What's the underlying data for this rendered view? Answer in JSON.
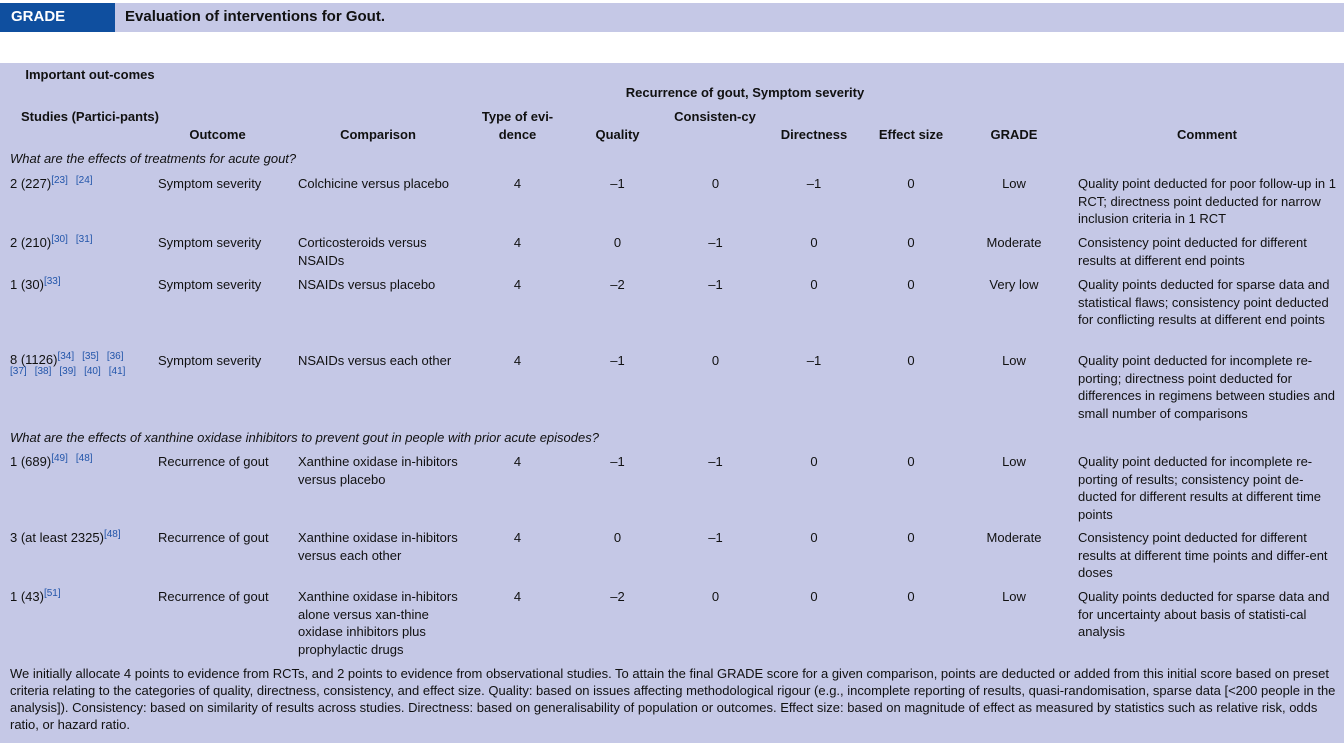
{
  "title": {
    "tag": "GRADE",
    "text": "Evaluation of interventions for Gout."
  },
  "header": {
    "important": "Important out-comes",
    "group": "Recurrence of gout, Symptom severity",
    "studies": "Studies (Partici-pants)",
    "outcome": "Outcome",
    "comparison": "Comparison",
    "type": "Type of evi-dence",
    "quality": "Quality",
    "consistency": "Consisten-cy",
    "directness": "Directness",
    "effect": "Effect size",
    "grade": "GRADE",
    "comment": "Comment"
  },
  "sections": [
    {
      "question": "What are the effects of treatments for acute gout?",
      "rows": [
        {
          "studies": "2 (227)",
          "refs": [
            "[23]",
            "[24]"
          ],
          "outcome": "Symptom severity",
          "comparison": "Colchicine versus placebo",
          "type": "4",
          "quality": "–1",
          "consistency": "0",
          "directness": "–1",
          "effect": "0",
          "grade": "Low",
          "comment": "Quality point deducted for poor follow-up in 1 RCT; directness point deducted for narrow inclusion criteria in 1 RCT"
        },
        {
          "studies": "2 (210)",
          "refs": [
            "[30]",
            "[31]"
          ],
          "outcome": "Symptom severity",
          "comparison": "Corticosteroids versus NSAIDs",
          "type": "4",
          "quality": "0",
          "consistency": "–1",
          "directness": "0",
          "effect": "0",
          "grade": "Moderate",
          "comment": "Consistency point deducted for different results at different end points"
        },
        {
          "studies": "1 (30)",
          "refs": [
            "[33]"
          ],
          "outcome": "Symptom severity",
          "comparison": "NSAIDs versus placebo",
          "type": "4",
          "quality": "–2",
          "consistency": "–1",
          "directness": "0",
          "effect": "0",
          "grade": "Very low",
          "comment": "Quality points deducted for sparse data and statistical flaws; consistency point deducted for conflicting results at different end points"
        },
        {
          "studies": "8 (1126)",
          "refs": [
            "[34]",
            "[35]",
            "[36]",
            "[37]",
            "[38]",
            "[39]",
            "[40]",
            "[41]"
          ],
          "outcome": "Symptom severity",
          "comparison": "NSAIDs versus each other",
          "type": "4",
          "quality": "–1",
          "consistency": "0",
          "directness": "–1",
          "effect": "0",
          "grade": "Low",
          "comment": "Quality point deducted for incomplete re-porting; directness point deducted for differences in regimens between studies and small number of comparisons"
        }
      ]
    },
    {
      "question": "What are the effects of xanthine oxidase inhibitors to prevent gout in people with prior acute episodes?",
      "rows": [
        {
          "studies": "1 (689)",
          "refs": [
            "[49]",
            "[48]"
          ],
          "outcome": "Recurrence of gout",
          "comparison": "Xanthine oxidase in-hibitors versus placebo",
          "type": "4",
          "quality": "–1",
          "consistency": "–1",
          "directness": "0",
          "effect": "0",
          "grade": "Low",
          "comment": "Quality point deducted for incomplete re-porting of results; consistency point de-ducted for different results at different time points"
        },
        {
          "studies": "3 (at least 2325)",
          "refs": [
            "[48]"
          ],
          "outcome": "Recurrence of gout",
          "comparison": "Xanthine oxidase in-hibitors versus each other",
          "type": "4",
          "quality": "0",
          "consistency": "–1",
          "directness": "0",
          "effect": "0",
          "grade": "Moderate",
          "comment": "Consistency point deducted for different results at different time points and differ-ent doses"
        },
        {
          "studies": "1 (43)",
          "refs": [
            "[51]"
          ],
          "outcome": "Recurrence of gout",
          "comparison": "Xanthine oxidase in-hibitors alone versus xan-thine oxidase inhibitors plus prophylactic drugs",
          "type": "4",
          "quality": "–2",
          "consistency": "0",
          "directness": "0",
          "effect": "0",
          "grade": "Low",
          "comment": "Quality points deducted for sparse data and for uncertainty about basis of statisti-cal analysis"
        }
      ]
    }
  ],
  "footnote": "We initially allocate 4 points to evidence from RCTs, and 2 points to evidence from observational studies. To attain the final GRADE score for a given comparison, points are deducted or added from this initial score based on preset criteria relating to the categories of quality, directness, consistency, and effect size. Quality: based on issues affecting methodological rigour (e.g., incomplete reporting of results, quasi-randomisation, sparse data [<200 people in the analysis]). Consistency: based on similarity of results across studies. Directness: based on generalisability of population or outcomes. Effect size: based on magnitude of effect as measured by statistics such as relative risk, odds ratio, or hazard ratio."
}
